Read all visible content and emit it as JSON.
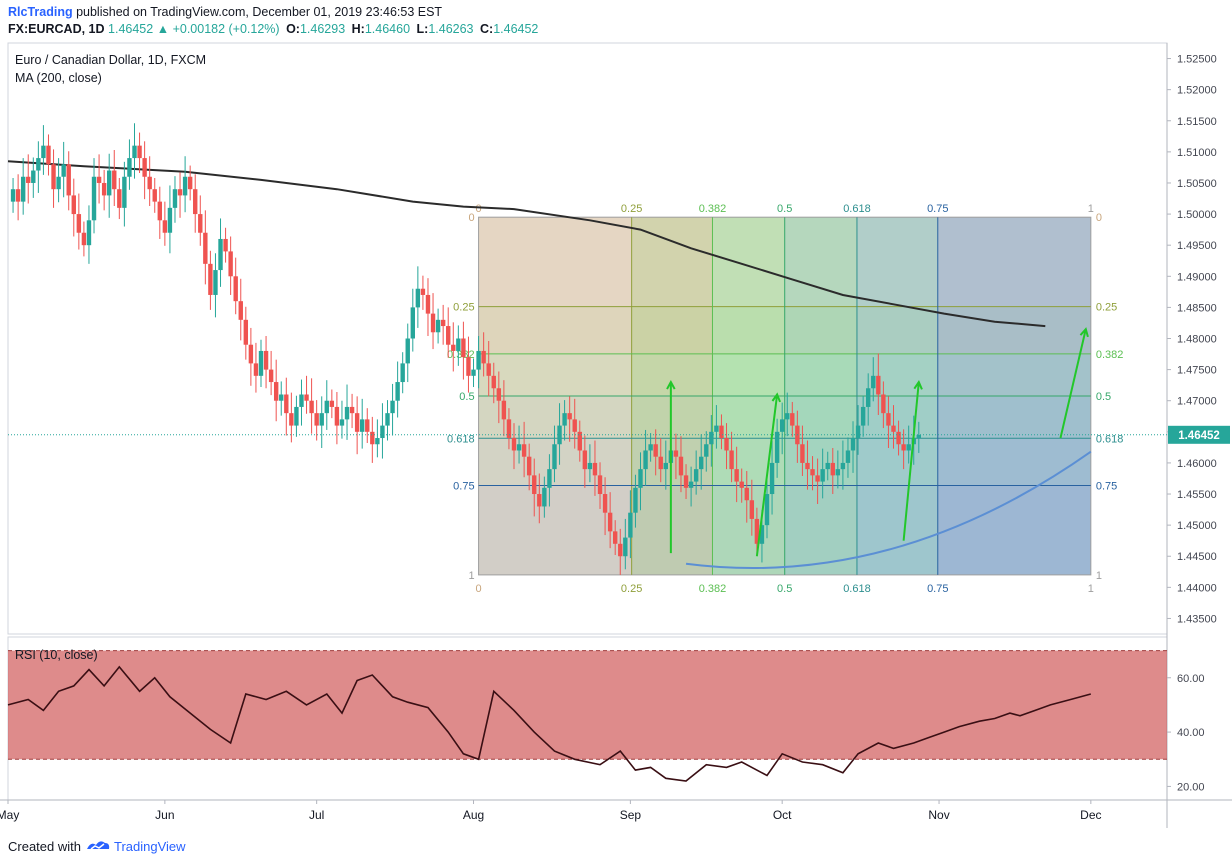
{
  "header": {
    "author": "RlcTrading",
    "published_text": "published on TradingView.com, December 01, 2019 23:46:53 EST",
    "symbol_line": "FX:EURCAD, 1D",
    "last": "1.46452",
    "change": "+0.00182 (+0.12%)",
    "open_label": "O:",
    "open": "1.46293",
    "high_label": "H:",
    "high": "1.46460",
    "low_label": "L:",
    "low": "1.46263",
    "close_label": "C:",
    "close": "1.46452"
  },
  "footer": {
    "created_with": "Created with",
    "brand": "TradingView"
  },
  "chart_data": [
    {
      "type": "candlestick",
      "title": "Euro / Canadian Dollar, 1D, FXCM",
      "indicator_label": "MA (200, close)",
      "y_ticks": [
        "1.52500",
        "1.52000",
        "1.51500",
        "1.51000",
        "1.50500",
        "1.50000",
        "1.49500",
        "1.49000",
        "1.48500",
        "1.48000",
        "1.47500",
        "1.47000",
        "1.46500",
        "1.46000",
        "1.45500",
        "1.45000",
        "1.44500",
        "1.44000",
        "1.43500"
      ],
      "ylim": [
        1.4325,
        1.5275
      ],
      "x_labels": [
        {
          "label": "May",
          "day": 0
        },
        {
          "label": "Jun",
          "day": 31
        },
        {
          "label": "Jul",
          "day": 61
        },
        {
          "label": "Aug",
          "day": 92
        },
        {
          "label": "Sep",
          "day": 123
        },
        {
          "label": "Oct",
          "day": 153
        },
        {
          "label": "Nov",
          "day": 184
        },
        {
          "label": "Dec",
          "day": 214
        }
      ],
      "current_price": "1.46452",
      "closes": [
        1.504,
        1.502,
        1.506,
        1.505,
        1.507,
        1.509,
        1.511,
        1.508,
        1.504,
        1.506,
        1.508,
        1.503,
        1.5,
        1.497,
        1.495,
        1.499,
        1.506,
        1.505,
        1.503,
        1.507,
        1.504,
        1.501,
        1.506,
        1.509,
        1.511,
        1.509,
        1.506,
        1.504,
        1.502,
        1.499,
        1.497,
        1.501,
        1.504,
        1.503,
        1.506,
        1.504,
        1.5,
        1.497,
        1.492,
        1.487,
        1.491,
        1.496,
        1.494,
        1.49,
        1.486,
        1.483,
        1.479,
        1.476,
        1.474,
        1.478,
        1.475,
        1.473,
        1.47,
        1.471,
        1.468,
        1.466,
        1.469,
        1.471,
        1.47,
        1.468,
        1.466,
        1.468,
        1.47,
        1.469,
        1.466,
        1.467,
        1.469,
        1.468,
        1.465,
        1.467,
        1.465,
        1.463,
        1.464,
        1.466,
        1.468,
        1.47,
        1.473,
        1.476,
        1.48,
        1.485,
        1.488,
        1.487,
        1.484,
        1.481,
        1.483,
        1.482,
        1.479,
        1.478,
        1.48,
        1.477,
        1.474,
        1.475,
        1.478,
        1.476,
        1.474,
        1.472,
        1.47,
        1.467,
        1.464,
        1.462,
        1.463,
        1.461,
        1.458,
        1.455,
        1.453,
        1.456,
        1.459,
        1.463,
        1.466,
        1.468,
        1.467,
        1.465,
        1.462,
        1.459,
        1.46,
        1.458,
        1.455,
        1.452,
        1.449,
        1.447,
        1.445,
        1.448,
        1.452,
        1.456,
        1.459,
        1.462,
        1.463,
        1.461,
        1.459,
        1.46,
        1.462,
        1.461,
        1.458,
        1.456,
        1.457,
        1.459,
        1.461,
        1.463,
        1.465,
        1.466,
        1.464,
        1.462,
        1.459,
        1.457,
        1.456,
        1.454,
        1.451,
        1.447,
        1.45,
        1.455,
        1.46,
        1.465,
        1.467,
        1.468,
        1.466,
        1.463,
        1.46,
        1.459,
        1.458,
        1.457,
        1.459,
        1.46,
        1.458,
        1.459,
        1.46,
        1.462,
        1.464,
        1.466,
        1.469,
        1.472,
        1.474,
        1.471,
        1.468,
        1.466,
        1.465,
        1.463,
        1.462,
        1.463,
        1.464,
        1.4645
      ],
      "ma200": [
        [
          0,
          1.5085
        ],
        [
          15,
          1.5077
        ],
        [
          35,
          1.5068
        ],
        [
          50,
          1.5055
        ],
        [
          65,
          1.504
        ],
        [
          80,
          1.502
        ],
        [
          90,
          1.5012
        ],
        [
          100,
          1.5008
        ],
        [
          115,
          1.499
        ],
        [
          125,
          1.4975
        ],
        [
          135,
          1.4945
        ],
        [
          145,
          1.492
        ],
        [
          155,
          1.4895
        ],
        [
          165,
          1.487
        ],
        [
          175,
          1.4855
        ],
        [
          185,
          1.484
        ],
        [
          195,
          1.4827
        ],
        [
          205,
          1.482
        ]
      ]
    },
    {
      "type": "fib_speed_resistance_fan",
      "levels": [
        {
          "label": "0",
          "value": 0
        },
        {
          "label": "0.25",
          "value": 0.25
        },
        {
          "label": "0.382",
          "value": 0.382
        },
        {
          "label": "0.5",
          "value": 0.5
        },
        {
          "label": "0.618",
          "value": 0.618
        },
        {
          "label": "0.75",
          "value": 0.75
        },
        {
          "label": "1",
          "value": 1
        }
      ],
      "left_labels": [
        "0",
        "0.25",
        "0.382",
        "0.5",
        "0.618",
        "0.75",
        "1"
      ],
      "right_labels": [
        "0",
        "0.25",
        "0.382",
        "0.5",
        "0.618",
        "0.75",
        "1"
      ],
      "colors": [
        "#c8a57c",
        "#8f9f3a",
        "#5bbf52",
        "#36a76a",
        "#2e8f8f",
        "#2962a0",
        "#9e9e9e"
      ],
      "price_range": [
        1.442,
        1.4995
      ],
      "day_range": [
        93,
        214
      ]
    },
    {
      "type": "line",
      "title": "RSI (10, close)",
      "y_ticks": [
        "60.00",
        "40.00",
        "20.00"
      ],
      "ylim": [
        15,
        75
      ],
      "bands": [
        30,
        70
      ],
      "points": [
        [
          0,
          50
        ],
        [
          4,
          52
        ],
        [
          7,
          48
        ],
        [
          10,
          55
        ],
        [
          13,
          57
        ],
        [
          16,
          63
        ],
        [
          19,
          57
        ],
        [
          22,
          64
        ],
        [
          26,
          55
        ],
        [
          29,
          60
        ],
        [
          32,
          53
        ],
        [
          36,
          47
        ],
        [
          40,
          41
        ],
        [
          44,
          36
        ],
        [
          47,
          54
        ],
        [
          51,
          52
        ],
        [
          55,
          55
        ],
        [
          59,
          50
        ],
        [
          63,
          54
        ],
        [
          66,
          47
        ],
        [
          69,
          59
        ],
        [
          72,
          61
        ],
        [
          76,
          53
        ],
        [
          79,
          51
        ],
        [
          83,
          49
        ],
        [
          87,
          40
        ],
        [
          90,
          32
        ],
        [
          93,
          30
        ],
        [
          96,
          55
        ],
        [
          100,
          48
        ],
        [
          104,
          40
        ],
        [
          108,
          33
        ],
        [
          112,
          30
        ],
        [
          117,
          28
        ],
        [
          121,
          33
        ],
        [
          124,
          26
        ],
        [
          127,
          27
        ],
        [
          130,
          23
        ],
        [
          134,
          22
        ],
        [
          138,
          28
        ],
        [
          142,
          27
        ],
        [
          145,
          29
        ],
        [
          150,
          24
        ],
        [
          153,
          32
        ],
        [
          157,
          29
        ],
        [
          161,
          28
        ],
        [
          165,
          25
        ],
        [
          168,
          32
        ],
        [
          172,
          36
        ],
        [
          175,
          34
        ],
        [
          179,
          36
        ],
        [
          182,
          38
        ],
        [
          185,
          40
        ],
        [
          188,
          42
        ],
        [
          192,
          44
        ],
        [
          195,
          45
        ],
        [
          198,
          47
        ],
        [
          200,
          46
        ],
        [
          203,
          48
        ],
        [
          206,
          50
        ],
        [
          210,
          52
        ],
        [
          214,
          54
        ]
      ]
    }
  ]
}
